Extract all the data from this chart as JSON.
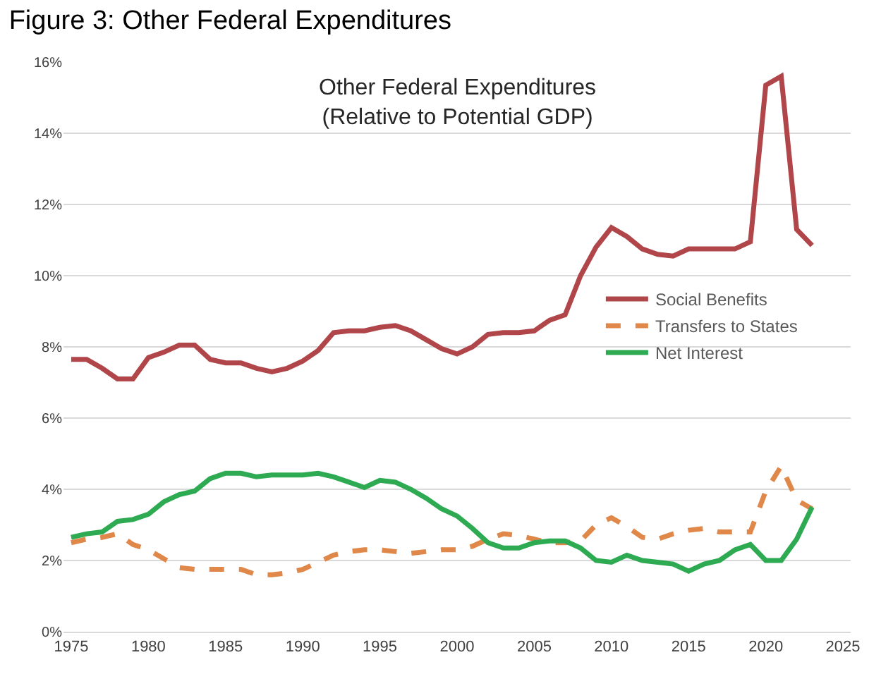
{
  "chart_data": {
    "type": "line",
    "title": "Figure 3: Other Federal Expenditures",
    "subtitle": "Other Federal Expenditures\n(Relative to Potential GDP)",
    "x": [
      1975,
      1976,
      1977,
      1978,
      1979,
      1980,
      1981,
      1982,
      1983,
      1984,
      1985,
      1986,
      1987,
      1988,
      1989,
      1990,
      1991,
      1992,
      1993,
      1994,
      1995,
      1996,
      1997,
      1998,
      1999,
      2000,
      2001,
      2002,
      2003,
      2004,
      2005,
      2006,
      2007,
      2008,
      2009,
      2010,
      2011,
      2012,
      2013,
      2014,
      2015,
      2016,
      2017,
      2018,
      2019,
      2020,
      2021,
      2022,
      2023
    ],
    "series": [
      {
        "name": "Social Benefits",
        "color": "#b0464a",
        "line_style": "solid",
        "values": [
          7.65,
          7.65,
          7.4,
          7.1,
          7.1,
          7.7,
          7.85,
          8.05,
          8.05,
          7.65,
          7.55,
          7.55,
          7.4,
          7.3,
          7.4,
          7.6,
          7.9,
          8.4,
          8.45,
          8.45,
          8.55,
          8.6,
          8.45,
          8.2,
          7.95,
          7.8,
          8.0,
          8.35,
          8.4,
          8.4,
          8.45,
          8.75,
          8.9,
          10.0,
          10.8,
          11.35,
          11.1,
          10.75,
          10.6,
          10.55,
          10.75,
          10.75,
          10.75,
          10.75,
          10.95,
          15.35,
          15.6,
          11.3,
          10.85
        ]
      },
      {
        "name": "Transfers to States",
        "color": "#e0884a",
        "line_style": "dashed",
        "values": [
          2.5,
          2.6,
          2.65,
          2.75,
          2.45,
          2.3,
          2.05,
          1.8,
          1.75,
          1.75,
          1.75,
          1.75,
          1.6,
          1.6,
          1.65,
          1.75,
          1.95,
          2.15,
          2.25,
          2.3,
          2.3,
          2.25,
          2.2,
          2.25,
          2.3,
          2.3,
          2.4,
          2.6,
          2.75,
          2.7,
          2.6,
          2.5,
          2.5,
          2.55,
          3.0,
          3.2,
          2.95,
          2.65,
          2.6,
          2.75,
          2.85,
          2.9,
          2.8,
          2.8,
          2.8,
          3.95,
          4.65,
          3.7,
          3.45
        ]
      },
      {
        "name": "Net Interest",
        "color": "#2eaa52",
        "line_style": "solid",
        "values": [
          2.65,
          2.75,
          2.8,
          3.1,
          3.15,
          3.3,
          3.65,
          3.85,
          3.95,
          4.3,
          4.45,
          4.45,
          4.35,
          4.4,
          4.4,
          4.4,
          4.45,
          4.35,
          4.2,
          4.05,
          4.25,
          4.2,
          4.0,
          3.75,
          3.45,
          3.25,
          2.9,
          2.5,
          2.35,
          2.35,
          2.5,
          2.55,
          2.55,
          2.35,
          2.0,
          1.95,
          2.15,
          2.0,
          1.95,
          1.9,
          1.7,
          1.9,
          2.0,
          2.3,
          2.45,
          2.0,
          2.0,
          2.6,
          3.5
        ]
      }
    ],
    "xlim": [
      1974.5,
      2025.5
    ],
    "xticks": [
      1975,
      1980,
      1985,
      1990,
      1995,
      2000,
      2005,
      2010,
      2015,
      2020,
      2025
    ],
    "ylim": [
      0,
      16
    ],
    "yticks": [
      {
        "value": 0,
        "label": "0%"
      },
      {
        "value": 2,
        "label": "2%"
      },
      {
        "value": 4,
        "label": "4%"
      },
      {
        "value": 6,
        "label": "6%"
      },
      {
        "value": 8,
        "label": "8%"
      },
      {
        "value": 10,
        "label": "10%"
      },
      {
        "value": 12,
        "label": "12%"
      },
      {
        "value": 14,
        "label": "14%"
      },
      {
        "value": 16,
        "label": "16%"
      }
    ],
    "grid": "y",
    "legend": "right",
    "marker": "none"
  }
}
